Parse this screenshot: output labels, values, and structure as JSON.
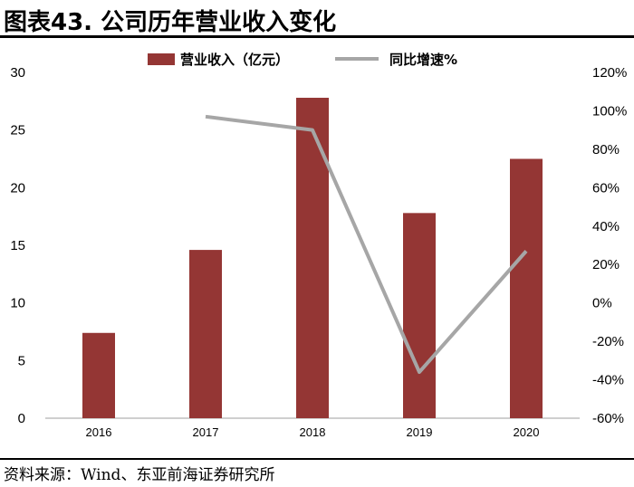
{
  "header": {
    "title": "图表43. 公司历年营业收入变化"
  },
  "footer": {
    "source": "资料来源：Wind、东亚前海证券研究所"
  },
  "colors": {
    "bar": "#943634",
    "line": "#A6A6A6",
    "axis": "#BFBFBF"
  },
  "chart_data": {
    "type": "bar",
    "title": "",
    "categories": [
      "2016",
      "2017",
      "2018",
      "2019",
      "2020"
    ],
    "series": [
      {
        "name": "营业收入（亿元）",
        "type": "bar",
        "axis": "left",
        "values": [
          7.4,
          14.6,
          27.8,
          17.8,
          22.5
        ]
      },
      {
        "name": "同比增速%",
        "type": "line",
        "axis": "right",
        "values": [
          null,
          97,
          90,
          -36,
          27
        ]
      }
    ],
    "ylim": [
      0,
      30
    ],
    "yticks": [
      "0",
      "5",
      "10",
      "15",
      "20",
      "25",
      "30"
    ],
    "y2lim": [
      -60,
      120
    ],
    "y2ticks": [
      "-60%",
      "-40%",
      "-20%",
      "0%",
      "20%",
      "40%",
      "60%",
      "80%",
      "100%",
      "120%"
    ],
    "legend_position": "top",
    "grid": false
  }
}
